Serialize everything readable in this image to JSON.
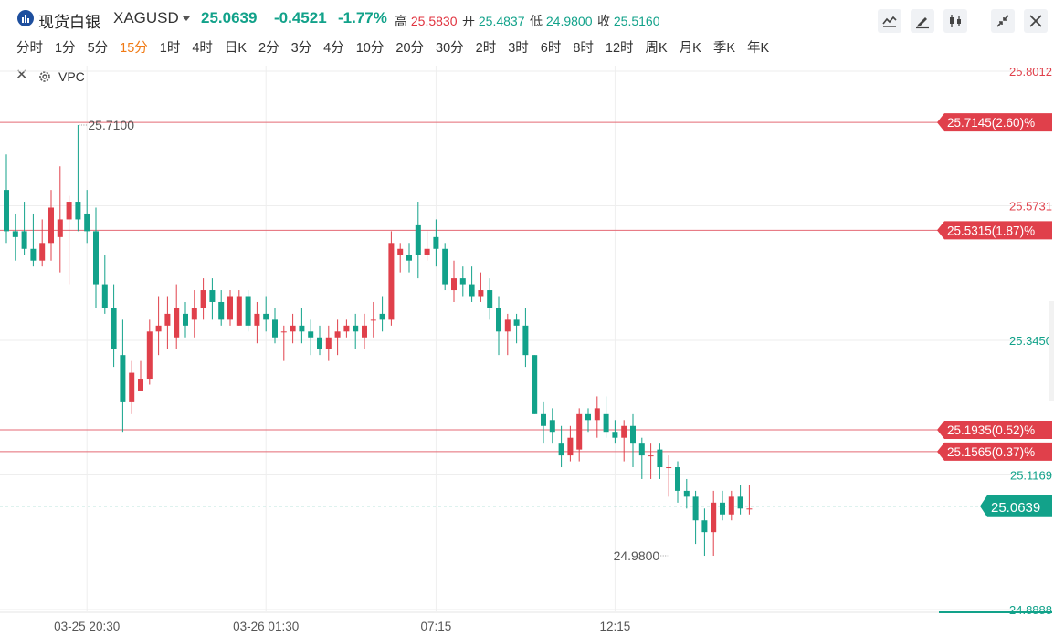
{
  "header": {
    "name": "现货白银",
    "symbol": "XAGUSD",
    "price": "25.0639",
    "change": "-0.4521",
    "change_pct": "-1.77%",
    "high_label": "高",
    "high": "25.5830",
    "open_label": "开",
    "open": "25.4837",
    "low_label": "低",
    "low": "24.9800",
    "close_label": "收",
    "close": "25.5160"
  },
  "toolbar": {
    "icons": [
      "line-chart-icon",
      "pencil-icon",
      "candlestick-icon",
      "collapse-icon",
      "close-icon"
    ]
  },
  "intervals": [
    {
      "label": "分时"
    },
    {
      "label": "1分"
    },
    {
      "label": "5分"
    },
    {
      "label": "15分",
      "active": true
    },
    {
      "label": "1时"
    },
    {
      "label": "4时"
    },
    {
      "label": "日K"
    },
    {
      "label": "2分"
    },
    {
      "label": "3分"
    },
    {
      "label": "4分"
    },
    {
      "label": "10分"
    },
    {
      "label": "20分"
    },
    {
      "label": "30分"
    },
    {
      "label": "2时"
    },
    {
      "label": "3时"
    },
    {
      "label": "6时"
    },
    {
      "label": "8时"
    },
    {
      "label": "12时"
    },
    {
      "label": "周K"
    },
    {
      "label": "月K"
    },
    {
      "label": "季K"
    },
    {
      "label": "年K"
    }
  ],
  "indicator": {
    "label": "VPC"
  },
  "colors": {
    "up": "#e0404b",
    "down": "#12a28a",
    "level": "#e46a74",
    "grid": "#eeeeee"
  },
  "chart_data": {
    "type": "candlestick",
    "ylim": [
      24.8888,
      25.8012
    ],
    "y_axis_labels": [
      {
        "value": 25.8012,
        "text": "25.8012",
        "color": "red"
      },
      {
        "value": 25.5731,
        "text": "25.5731",
        "color": "red"
      },
      {
        "value": 25.345,
        "text": "25.3450",
        "color": "green"
      },
      {
        "value": 25.1169,
        "text": "25.1169",
        "color": "green"
      },
      {
        "value": 24.8888,
        "text": "24.8888",
        "color": "green"
      }
    ],
    "x_labels": [
      {
        "index": 9,
        "text": "03-25 20:30"
      },
      {
        "index": 29,
        "text": "03-26 01:30"
      },
      {
        "index": 48,
        "text": "07:15"
      },
      {
        "index": 68,
        "text": "12:15"
      }
    ],
    "price_levels": [
      {
        "value": 25.7145,
        "text": "25.7145(2.60)%"
      },
      {
        "value": 25.5315,
        "text": "25.5315(1.87)%"
      },
      {
        "value": 25.1935,
        "text": "25.1935(0.52)%"
      },
      {
        "value": 25.1565,
        "text": "25.1565(0.37)%"
      }
    ],
    "last_price": {
      "value": 25.0639,
      "text": "25.0639"
    },
    "annotations": [
      {
        "index": 8,
        "value": 25.71,
        "text": "25.7100",
        "side": "right"
      },
      {
        "index": 74,
        "value": 24.98,
        "text": "24.9800",
        "side": "left"
      }
    ],
    "candles": [
      [
        25.6,
        25.66,
        25.51,
        25.53
      ],
      [
        25.53,
        25.56,
        25.48,
        25.52
      ],
      [
        25.53,
        25.58,
        25.49,
        25.5
      ],
      [
        25.5,
        25.56,
        25.47,
        25.48
      ],
      [
        25.48,
        25.55,
        25.47,
        25.51
      ],
      [
        25.51,
        25.6,
        25.48,
        25.57
      ],
      [
        25.52,
        25.64,
        25.46,
        25.55
      ],
      [
        25.55,
        25.59,
        25.44,
        25.58
      ],
      [
        25.58,
        25.71,
        25.53,
        25.55
      ],
      [
        25.56,
        25.6,
        25.51,
        25.53
      ],
      [
        25.53,
        25.57,
        25.4,
        25.44
      ],
      [
        25.44,
        25.49,
        25.39,
        25.4
      ],
      [
        25.4,
        25.44,
        25.3,
        25.33
      ],
      [
        25.32,
        25.38,
        25.19,
        25.24
      ],
      [
        25.24,
        25.31,
        25.22,
        25.29
      ],
      [
        25.26,
        25.31,
        25.26,
        25.28
      ],
      [
        25.28,
        25.38,
        25.27,
        25.36
      ],
      [
        25.36,
        25.42,
        25.32,
        25.37
      ],
      [
        25.37,
        25.42,
        25.33,
        25.39
      ],
      [
        25.35,
        25.44,
        25.33,
        25.4
      ],
      [
        25.39,
        25.41,
        25.35,
        25.37
      ],
      [
        25.38,
        25.43,
        25.35,
        25.4
      ],
      [
        25.4,
        25.45,
        25.38,
        25.43
      ],
      [
        25.43,
        25.45,
        25.38,
        25.41
      ],
      [
        25.41,
        25.43,
        25.37,
        25.38
      ],
      [
        25.38,
        25.43,
        25.37,
        25.42
      ],
      [
        25.37,
        25.43,
        25.37,
        25.42
      ],
      [
        25.42,
        25.43,
        25.36,
        25.37
      ],
      [
        25.37,
        25.41,
        25.34,
        25.39
      ],
      [
        25.39,
        25.42,
        25.36,
        25.38
      ],
      [
        25.38,
        25.4,
        25.34,
        25.35
      ],
      [
        25.36,
        25.37,
        25.31,
        25.36
      ],
      [
        25.36,
        25.39,
        25.34,
        25.37
      ],
      [
        25.37,
        25.4,
        25.34,
        25.36
      ],
      [
        25.36,
        25.38,
        25.32,
        25.35
      ],
      [
        25.35,
        25.37,
        25.32,
        25.33
      ],
      [
        25.33,
        25.37,
        25.31,
        25.35
      ],
      [
        25.35,
        25.38,
        25.32,
        25.36
      ],
      [
        25.36,
        25.38,
        25.35,
        25.37
      ],
      [
        25.37,
        25.39,
        25.33,
        25.36
      ],
      [
        25.35,
        25.39,
        25.33,
        25.37
      ],
      [
        25.38,
        25.41,
        25.35,
        25.38
      ],
      [
        25.39,
        25.42,
        25.36,
        25.38
      ],
      [
        25.38,
        25.53,
        25.37,
        25.51
      ],
      [
        25.49,
        25.51,
        25.46,
        25.5
      ],
      [
        25.49,
        25.51,
        25.46,
        25.48
      ],
      [
        25.54,
        25.58,
        25.45,
        25.49
      ],
      [
        25.49,
        25.53,
        25.48,
        25.5
      ],
      [
        25.52,
        25.55,
        25.47,
        25.5
      ],
      [
        25.5,
        25.51,
        25.43,
        25.44
      ],
      [
        25.43,
        25.48,
        25.41,
        25.45
      ],
      [
        25.45,
        25.47,
        25.42,
        25.44
      ],
      [
        25.44,
        25.47,
        25.41,
        25.42
      ],
      [
        25.42,
        25.46,
        25.41,
        25.43
      ],
      [
        25.43,
        25.45,
        25.38,
        25.4
      ],
      [
        25.4,
        25.42,
        25.32,
        25.36
      ],
      [
        25.36,
        25.39,
        25.32,
        25.38
      ],
      [
        25.38,
        25.39,
        25.34,
        25.37
      ],
      [
        25.37,
        25.4,
        25.3,
        25.32
      ],
      [
        25.32,
        25.32,
        25.22,
        25.22
      ],
      [
        25.22,
        25.24,
        25.17,
        25.2
      ],
      [
        25.21,
        25.23,
        25.17,
        25.19
      ],
      [
        25.17,
        25.2,
        25.13,
        25.15
      ],
      [
        25.15,
        25.2,
        25.14,
        25.18
      ],
      [
        25.16,
        25.23,
        25.14,
        25.22
      ],
      [
        25.22,
        25.23,
        25.19,
        25.21
      ],
      [
        25.21,
        25.25,
        25.18,
        25.23
      ],
      [
        25.22,
        25.25,
        25.18,
        25.19
      ],
      [
        25.19,
        25.21,
        25.17,
        25.18
      ],
      [
        25.18,
        25.21,
        25.14,
        25.2
      ],
      [
        25.2,
        25.22,
        25.13,
        25.17
      ],
      [
        25.17,
        25.18,
        25.11,
        25.15
      ],
      [
        25.15,
        25.17,
        25.11,
        25.15
      ],
      [
        25.16,
        25.17,
        25.11,
        25.13
      ],
      [
        25.13,
        25.15,
        25.08,
        25.13
      ],
      [
        25.13,
        25.14,
        25.07,
        25.09
      ],
      [
        25.09,
        25.11,
        25.06,
        25.08
      ],
      [
        25.08,
        25.09,
        25.0,
        25.04
      ],
      [
        25.04,
        25.06,
        24.98,
        25.02
      ],
      [
        25.02,
        25.09,
        24.98,
        25.07
      ],
      [
        25.07,
        25.09,
        25.04,
        25.05
      ],
      [
        25.05,
        25.09,
        25.04,
        25.08
      ],
      [
        25.08,
        25.1,
        25.05,
        25.06
      ],
      [
        25.06,
        25.1,
        25.05,
        25.06
      ]
    ]
  }
}
